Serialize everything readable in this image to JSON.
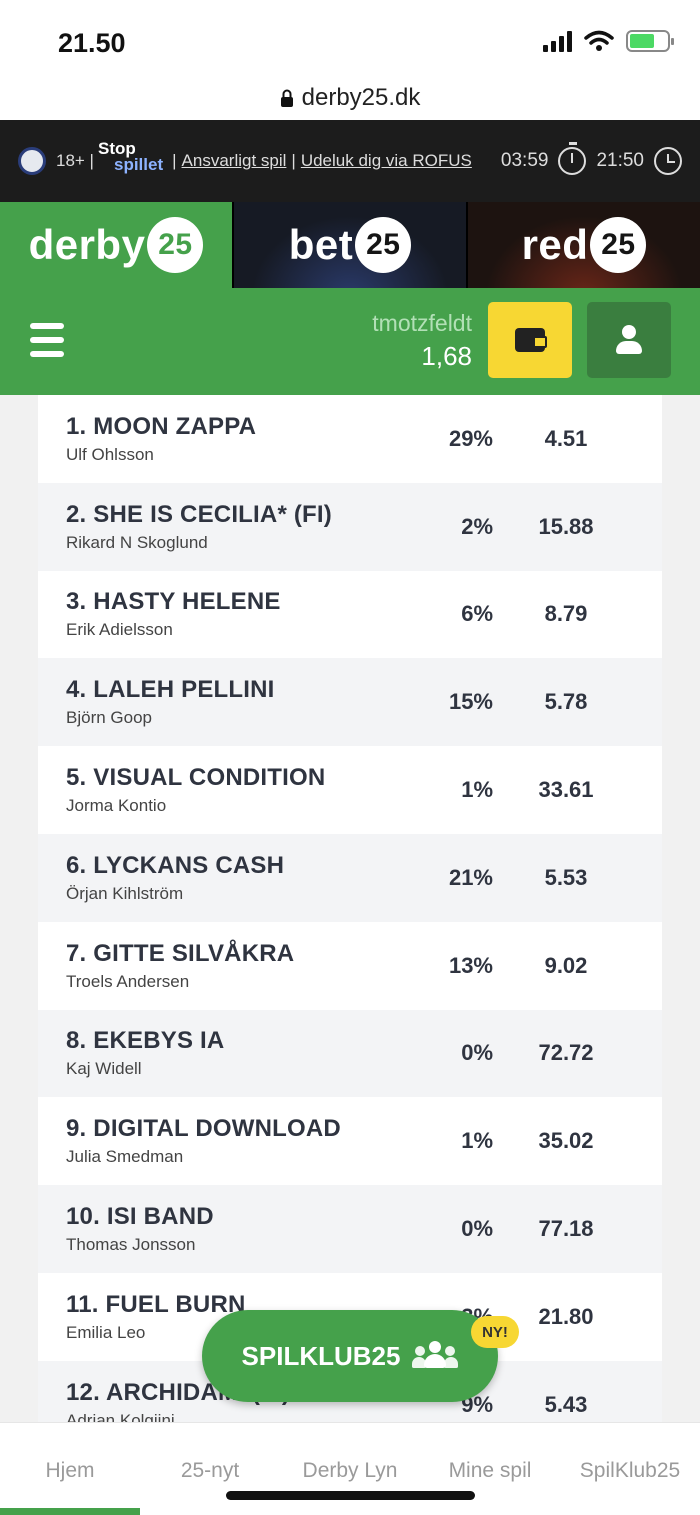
{
  "status": {
    "time": "21.50"
  },
  "url": "derby25.dk",
  "responsible": {
    "age": "18+ |",
    "stop_a": "Stop",
    "stop_b": "spillet",
    "link1": "Ansvarligt spil",
    "link2": "Udeluk dig via ROFUS",
    "session_time": "03:59",
    "clock_time": "21:50"
  },
  "brands": [
    {
      "word": "derby",
      "num": "25"
    },
    {
      "word": "bet",
      "num": "25"
    },
    {
      "word": "red",
      "num": "25"
    }
  ],
  "header": {
    "username": "tmotzfeldt",
    "balance": "1,68"
  },
  "runners": [
    {
      "horse": "1. MOON ZAPPA",
      "driver": "Ulf Ohlsson",
      "pct": "29%",
      "odds": "4.51"
    },
    {
      "horse": "2. SHE IS CECILIA* (FI)",
      "driver": "Rikard N Skoglund",
      "pct": "2%",
      "odds": "15.88"
    },
    {
      "horse": "3. HASTY HELENE",
      "driver": "Erik Adielsson",
      "pct": "6%",
      "odds": "8.79"
    },
    {
      "horse": "4. LALEH PELLINI",
      "driver": "Björn Goop",
      "pct": "15%",
      "odds": "5.78"
    },
    {
      "horse": "5. VISUAL CONDITION",
      "driver": "Jorma Kontio",
      "pct": "1%",
      "odds": "33.61"
    },
    {
      "horse": "6. LYCKANS CASH",
      "driver": "Örjan Kihlström",
      "pct": "21%",
      "odds": "5.53"
    },
    {
      "horse": "7. GITTE SILVÅKRA",
      "driver": "Troels Andersen",
      "pct": "13%",
      "odds": "9.02"
    },
    {
      "horse": "8. EKEBYS IA",
      "driver": "Kaj Widell",
      "pct": "0%",
      "odds": "72.72"
    },
    {
      "horse": "9. DIGITAL DOWNLOAD",
      "driver": "Julia Smedman",
      "pct": "1%",
      "odds": "35.02"
    },
    {
      "horse": "10. ISI BAND",
      "driver": "Thomas Jonsson",
      "pct": "0%",
      "odds": "77.18"
    },
    {
      "horse": "11. FUEL BURN",
      "driver": "Emilia Leo",
      "pct": "3%",
      "odds": "21.80"
    },
    {
      "horse": "12. ARCHIDAMI (IT)",
      "driver": "Adrian Kolgjini",
      "pct": "9%",
      "odds": "5.43"
    }
  ],
  "spilklub": {
    "label": "SPILKLUB25",
    "badge": "NY!"
  },
  "nav": [
    "Hjem",
    "25-nyt",
    "Derby Lyn",
    "Mine spil",
    "SpilKlub25"
  ]
}
